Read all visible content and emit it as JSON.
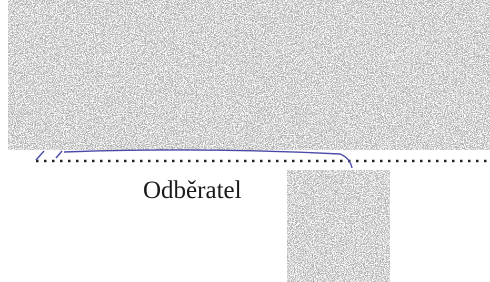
{
  "label": "Odběratel"
}
